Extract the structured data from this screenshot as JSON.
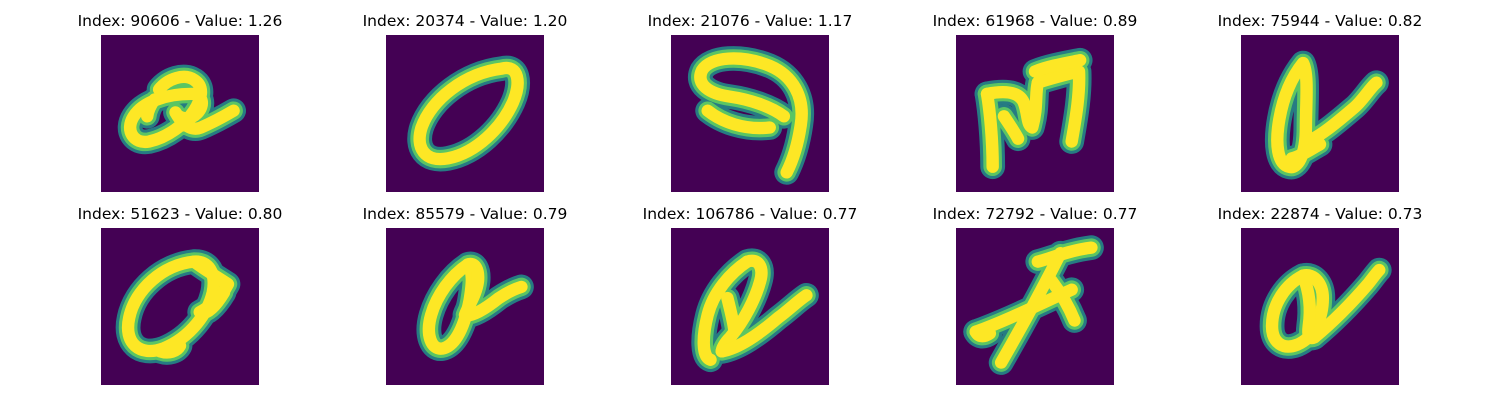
{
  "colors": {
    "background": "#440154",
    "stroke_outer": "#21918c",
    "stroke_mid": "#5ec962",
    "stroke_core": "#fde725"
  },
  "panels": [
    {
      "index": "90606",
      "value": "1.26",
      "title": "Index: 90606 - Value: 1.26",
      "glyph": "loop with tail (a-like)"
    },
    {
      "index": "20374",
      "value": "1.20",
      "title": "Index: 20374 - Value: 1.20",
      "glyph": "slanted zero"
    },
    {
      "index": "21076",
      "value": "1.17",
      "title": "Index: 21076 - Value: 1.17",
      "glyph": "hook (nine-like)"
    },
    {
      "index": "61968",
      "value": "0.89",
      "title": "Index: 61968 - Value: 0.89",
      "glyph": "m-like"
    },
    {
      "index": "75944",
      "value": "0.82",
      "title": "Index: 75944 - Value: 0.82",
      "glyph": "alpha-like"
    },
    {
      "index": "51623",
      "value": "0.80",
      "title": "Index: 51623 - Value: 0.80",
      "glyph": "loop with tail"
    },
    {
      "index": "85579",
      "value": "0.79",
      "title": "Index: 85579 - Value: 0.79",
      "glyph": "alpha-like"
    },
    {
      "index": "106786",
      "value": "0.77",
      "title": "Index: 106786 - Value: 0.77",
      "glyph": "alpha-like"
    },
    {
      "index": "72792",
      "value": "0.77",
      "title": "Index: 72792 - Value: 0.77",
      "glyph": "star-like strokes"
    },
    {
      "index": "22874",
      "value": "0.73",
      "title": "Index: 22874 - Value: 0.73",
      "glyph": "alpha-like"
    }
  ]
}
